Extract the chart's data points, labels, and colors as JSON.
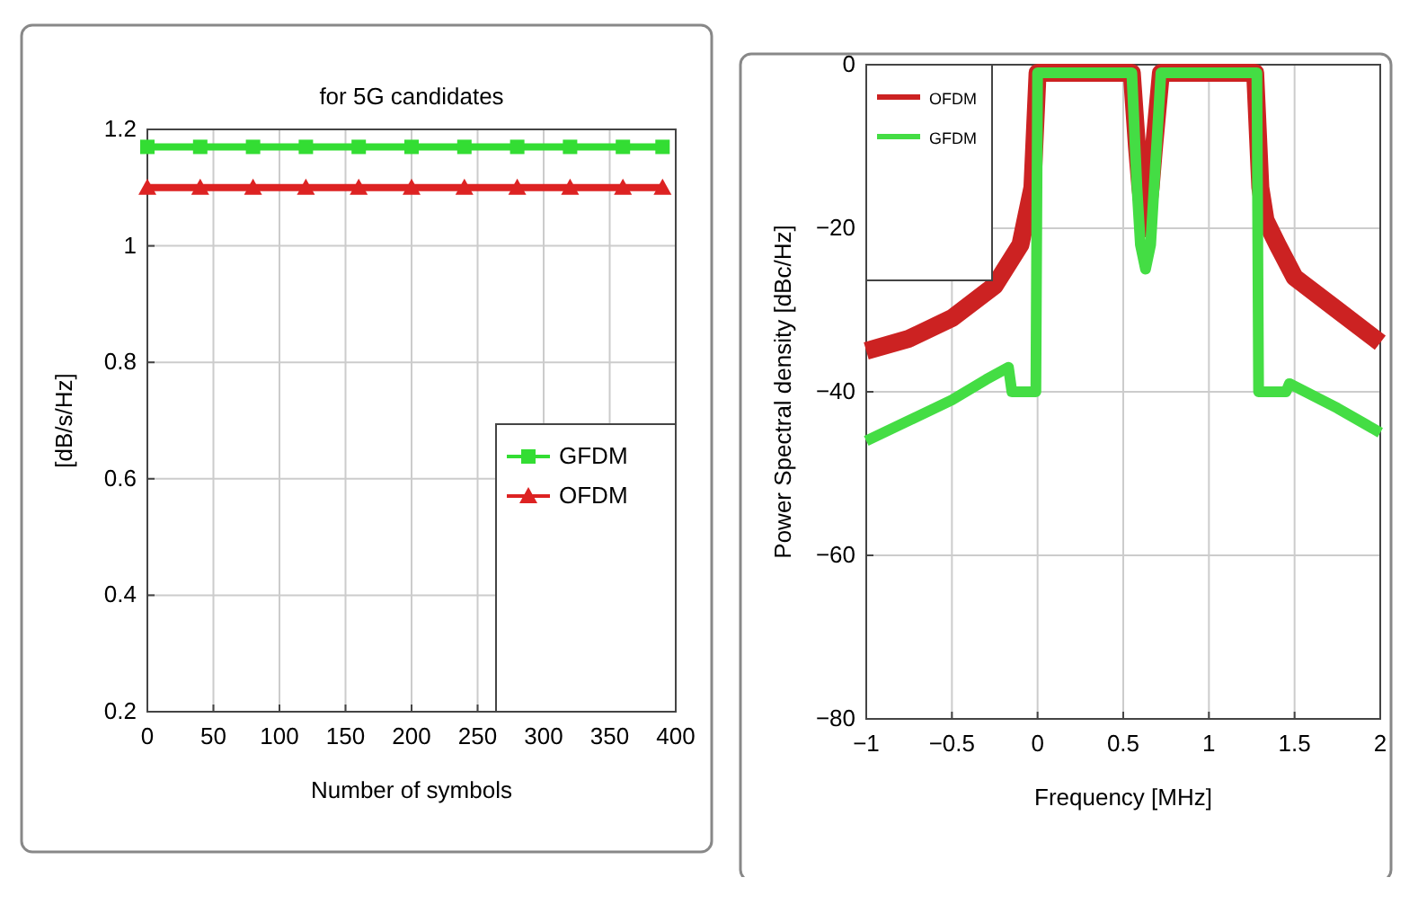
{
  "chart_data": [
    {
      "type": "line",
      "title": "for 5G candidates",
      "xlabel": "Number of symbols",
      "ylabel": "[dB/s/Hz]",
      "xlim": [
        0,
        400
      ],
      "xticks": [
        0,
        50,
        100,
        150,
        200,
        250,
        300,
        350,
        400
      ],
      "ylim": [
        0.2,
        1.2
      ],
      "yticks": [
        0.2,
        0.4,
        0.6,
        0.8,
        1,
        1.2
      ],
      "grid": true,
      "legend": "bottom right",
      "x": [
        0,
        40,
        80,
        120,
        160,
        200,
        240,
        280,
        320,
        360,
        390
      ],
      "series": [
        {
          "name": "GFDM",
          "color": "#33dd33",
          "marker": "square",
          "values": [
            1.17,
            1.17,
            1.17,
            1.17,
            1.17,
            1.17,
            1.17,
            1.17,
            1.17,
            1.17,
            1.17
          ]
        },
        {
          "name": "OFDM",
          "color": "#dd2222",
          "marker": "triangle",
          "values": [
            1.1,
            1.1,
            1.1,
            1.1,
            1.1,
            1.1,
            1.1,
            1.1,
            1.1,
            1.1,
            1.1
          ]
        }
      ]
    },
    {
      "type": "line",
      "xlabel": "Frequency [MHz]",
      "ylabel": "Power Spectral density [dBc/Hz]",
      "xlim": [
        -1,
        2
      ],
      "xticks": [
        -1,
        -0.5,
        0,
        0.5,
        1,
        1.5,
        2
      ],
      "ylim": [
        -80,
        0
      ],
      "yticks": [
        -80,
        -60,
        -40,
        -20,
        0
      ],
      "grid": true,
      "legend": "top left",
      "marker": "none",
      "series": [
        {
          "name": "OFDM",
          "color": "#cc2222",
          "x": [
            -1,
            -0.75,
            -0.5,
            -0.25,
            -0.1,
            -0.03,
            0,
            0.55,
            0.58,
            0.6,
            0.63,
            0.66,
            0.68,
            0.72,
            1.27,
            1.3,
            1.33,
            1.4,
            1.5,
            1.75,
            2
          ],
          "values": [
            -35,
            -33.5,
            -31,
            -27,
            -22,
            -15,
            -1,
            -1,
            -10,
            -15,
            -20,
            -15,
            -10,
            -1,
            -1,
            -15,
            -19,
            -22,
            -26,
            -30,
            -34
          ]
        },
        {
          "name": "GFDM",
          "color": "#44dd44",
          "x": [
            -1,
            -0.75,
            -0.5,
            -0.3,
            -0.17,
            -0.15,
            -0.01,
            0,
            0.55,
            0.58,
            0.6,
            0.63,
            0.66,
            0.68,
            0.72,
            1.28,
            1.29,
            1.45,
            1.47,
            1.75,
            2
          ],
          "values": [
            -46,
            -43.5,
            -41,
            -38.5,
            -37,
            -40,
            -40,
            -1,
            -1,
            -15,
            -22,
            -25,
            -22,
            -15,
            -1,
            -1,
            -40,
            -40,
            -39,
            -42,
            -45
          ]
        }
      ]
    }
  ]
}
